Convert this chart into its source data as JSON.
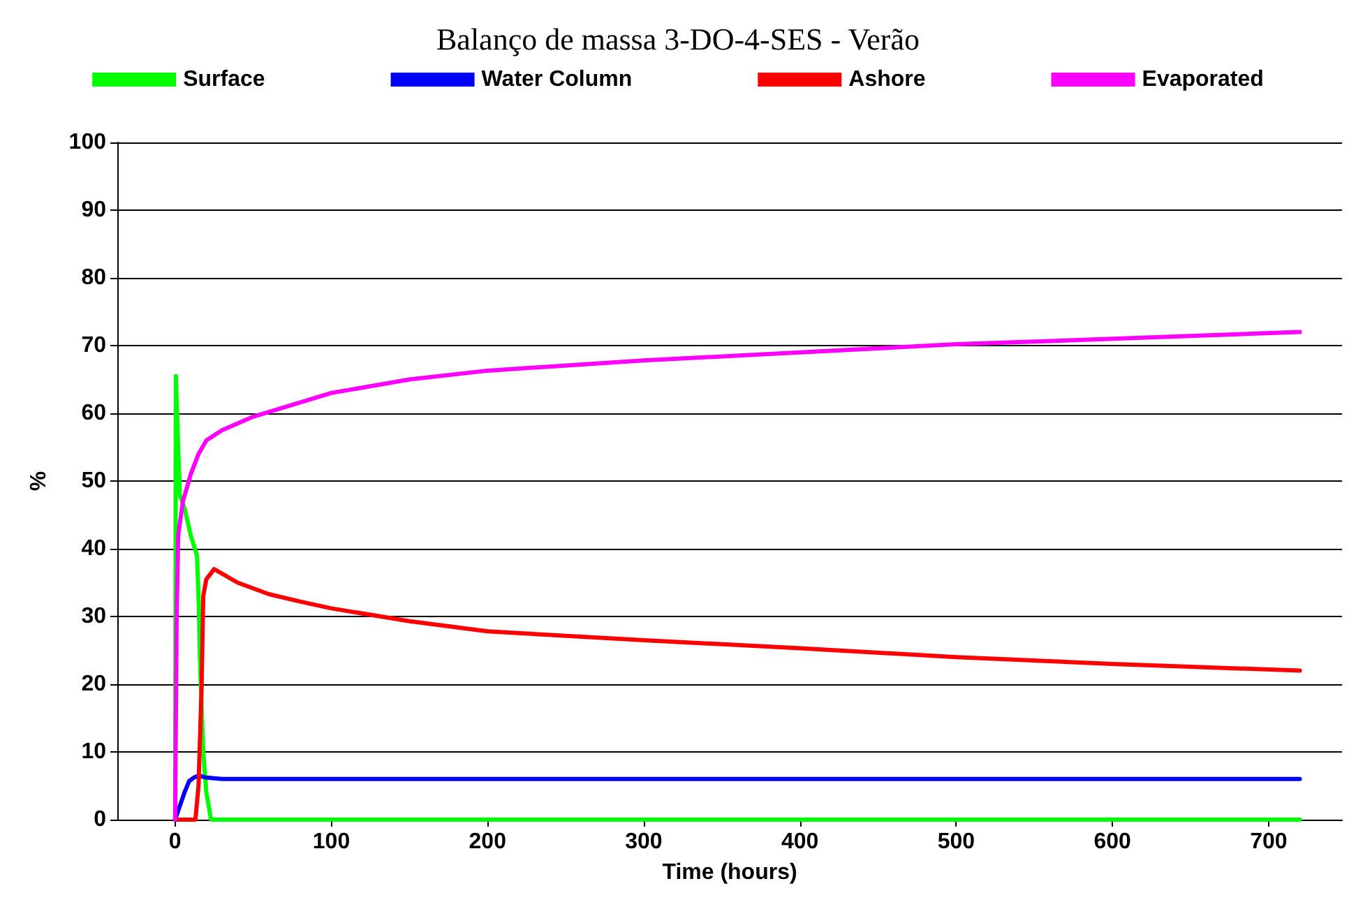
{
  "chart_data": {
    "type": "line",
    "title": "Balanço de massa 3-DO-4-SES - Verão",
    "xlabel": "Time (hours)",
    "ylabel": "%",
    "xlim": [
      -37,
      747
    ],
    "xticks": [
      0,
      100,
      200,
      300,
      400,
      500,
      600,
      700
    ],
    "ylim": [
      0,
      100
    ],
    "yticks": [
      0,
      10,
      20,
      30,
      40,
      50,
      60,
      70,
      80,
      90,
      100
    ],
    "grid": "y",
    "legend": "top",
    "marker": "none",
    "line_style": "solid",
    "series": [
      {
        "name": "Surface",
        "color": "#00ff00",
        "x": [
          0,
          0.5,
          2,
          3,
          6,
          10,
          14,
          15,
          16,
          18,
          20,
          23,
          720
        ],
        "values": [
          0,
          65.5,
          55,
          48,
          46,
          42,
          39,
          33,
          23,
          10,
          4,
          0,
          0
        ]
      },
      {
        "name": "Water Column",
        "color": "#0000ff",
        "x": [
          0,
          3,
          6,
          9,
          12,
          15,
          20,
          30,
          720
        ],
        "values": [
          0,
          2,
          4,
          5.7,
          6.2,
          6.5,
          6.2,
          6,
          6
        ]
      },
      {
        "name": "Ashore",
        "color": "#ff0000",
        "x": [
          0,
          13,
          15,
          17,
          18,
          20,
          25,
          40,
          60,
          80,
          100,
          150,
          200,
          300,
          400,
          500,
          600,
          720
        ],
        "values": [
          0,
          0,
          5,
          20,
          33,
          35.5,
          37,
          35,
          33.3,
          32.2,
          31.2,
          29.3,
          27.8,
          26.5,
          25.3,
          24,
          23,
          22
        ]
      },
      {
        "name": "Evaporated",
        "color": "#ff00ff",
        "x": [
          0,
          1,
          2,
          5,
          10,
          15,
          20,
          30,
          50,
          100,
          150,
          200,
          300,
          400,
          500,
          600,
          720
        ],
        "values": [
          0,
          30,
          42,
          47,
          51,
          54,
          56,
          57.5,
          59.5,
          63,
          65,
          66.3,
          67.8,
          69,
          70.2,
          71,
          72
        ]
      }
    ]
  }
}
